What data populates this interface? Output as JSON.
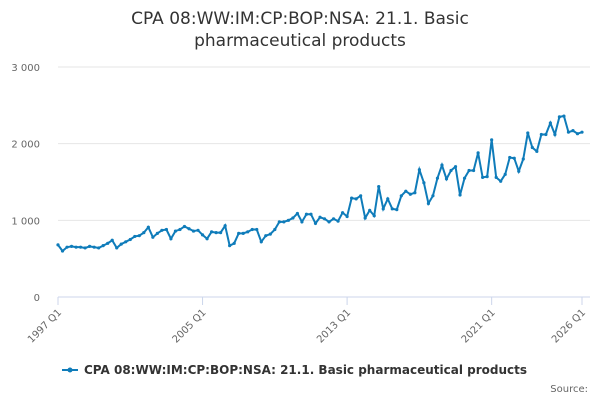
{
  "chart_data": {
    "type": "line",
    "title": "CPA 08:WW:IM:CP:BOP:NSA: 21.1. Basic pharmaceutical products",
    "source": "Source:",
    "x": [
      1997,
      1997.25,
      1997.5,
      1997.75,
      1998,
      1998.25,
      1998.5,
      1998.75,
      1999,
      1999.25,
      1999.5,
      1999.75,
      2000,
      2000.25,
      2000.5,
      2000.75,
      2001,
      2001.25,
      2001.5,
      2001.75,
      2002,
      2002.25,
      2002.5,
      2002.75,
      2003,
      2003.25,
      2003.5,
      2003.75,
      2004,
      2004.25,
      2004.5,
      2004.75,
      2005,
      2005.25,
      2005.5,
      2005.75,
      2006,
      2006.25,
      2006.5,
      2006.75,
      2007,
      2007.25,
      2007.5,
      2007.75,
      2008,
      2008.25,
      2008.5,
      2008.75,
      2009,
      2009.25,
      2009.5,
      2009.75,
      2010,
      2010.25,
      2010.5,
      2010.75,
      2011,
      2011.25,
      2011.5,
      2011.75,
      2012,
      2012.25,
      2012.5,
      2012.75,
      2013,
      2013.25,
      2013.5,
      2013.75,
      2014,
      2014.25,
      2014.5,
      2014.75,
      2015,
      2015.25,
      2015.5,
      2015.75,
      2016,
      2016.25,
      2016.5,
      2016.75,
      2017,
      2017.25,
      2017.5,
      2017.75,
      2018,
      2018.25,
      2018.5,
      2018.75,
      2019,
      2019.25,
      2019.5,
      2019.75,
      2020,
      2020.25,
      2020.5,
      2020.75,
      2021,
      2021.25,
      2021.5,
      2021.75,
      2022,
      2022.25,
      2022.5,
      2022.75,
      2023,
      2023.25,
      2023.5,
      2023.75,
      2024,
      2024.25,
      2024.5,
      2024.75,
      2025,
      2025.25,
      2025.5,
      2025.75,
      2026
    ],
    "series": [
      {
        "name": "CPA 08:WW:IM:CP:BOP:NSA: 21.1. Basic pharmaceutical products",
        "color": "#0f7cba",
        "values": [
          680,
          600,
          650,
          660,
          650,
          650,
          640,
          660,
          650,
          640,
          670,
          700,
          740,
          640,
          690,
          720,
          750,
          790,
          800,
          840,
          910,
          780,
          830,
          870,
          880,
          760,
          860,
          880,
          920,
          890,
          860,
          870,
          810,
          760,
          850,
          840,
          840,
          930,
          670,
          700,
          830,
          830,
          850,
          880,
          880,
          720,
          800,
          820,
          880,
          980,
          980,
          1000,
          1030,
          1090,
          980,
          1080,
          1080,
          960,
          1040,
          1020,
          980,
          1020,
          990,
          1100,
          1050,
          1290,
          1280,
          1320,
          1030,
          1130,
          1060,
          1440,
          1150,
          1280,
          1150,
          1140,
          1320,
          1380,
          1340,
          1360,
          1660,
          1490,
          1220,
          1320,
          1550,
          1720,
          1540,
          1650,
          1700,
          1330,
          1550,
          1650,
          1650,
          1880,
          1560,
          1570,
          2050,
          1560,
          1510,
          1600,
          1820,
          1810,
          1640,
          1800,
          2140,
          1950,
          1900,
          2120,
          2120,
          2270,
          2120,
          2350,
          2360,
          2150,
          2170,
          2130,
          2150
        ]
      }
    ],
    "xlim": [
      1997,
      2026
    ],
    "xticks": [
      {
        "value": 1997,
        "label": "1997 Q1"
      },
      {
        "value": 2005,
        "label": "2005 Q1"
      },
      {
        "value": 2013,
        "label": "2013 Q1"
      },
      {
        "value": 2021,
        "label": "2021 Q1"
      },
      {
        "value": 2026,
        "label": "2026 Q1"
      }
    ],
    "ylim": [
      0,
      3000
    ],
    "yticks": [
      0,
      {
        "value": 1000,
        "label": "1 000"
      },
      {
        "value": 2000,
        "label": "2 000"
      },
      {
        "value": 3000,
        "label": "3 000"
      }
    ],
    "grid": true
  }
}
